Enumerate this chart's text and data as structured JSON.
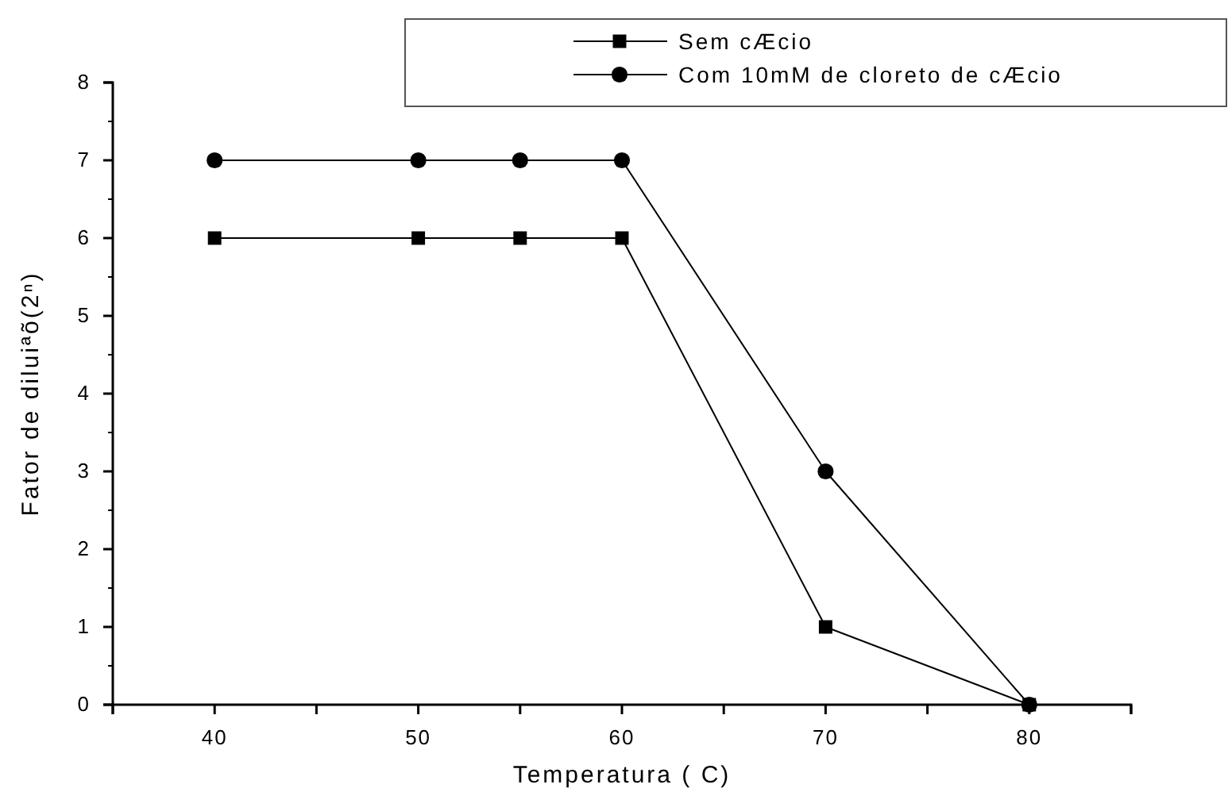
{
  "chart_data": {
    "type": "line",
    "xlabel": "Temperatura ( C)",
    "ylabel": "Fator de diluiªõ(2ⁿ)",
    "x": [
      40,
      50,
      55,
      60,
      70,
      80
    ],
    "series": [
      {
        "name": "Sem cÆcio",
        "color": "#000000",
        "marker": "square",
        "values": [
          6,
          6,
          6,
          6,
          1,
          0
        ]
      },
      {
        "name": "Com 10mM de cloreto de cÆcio",
        "color": "#000000",
        "marker": "circle",
        "values": [
          7,
          7,
          7,
          7,
          3,
          0
        ]
      }
    ],
    "xlim": [
      35,
      85
    ],
    "xticks": [
      {
        "value": 35,
        "label": null
      },
      40,
      {
        "value": 45,
        "label": null
      },
      50,
      {
        "value": 55,
        "label": null
      },
      60,
      {
        "value": 65,
        "label": null
      },
      70,
      {
        "value": 75,
        "label": null
      },
      80,
      {
        "value": 85,
        "label": null
      }
    ],
    "ylim": [
      0,
      8
    ],
    "yticks": [
      0,
      1,
      2,
      3,
      4,
      5,
      6,
      7,
      8
    ],
    "grid": false,
    "legend": "top right",
    "line_style": "solid"
  }
}
